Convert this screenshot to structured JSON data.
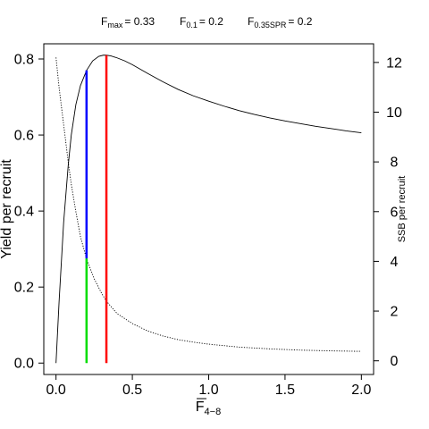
{
  "chart_data": {
    "type": "line",
    "title_parts": [
      {
        "base": "F",
        "sub": "max",
        "value": "= 0.33"
      },
      {
        "base": "F",
        "sub": "0.1",
        "value": "= 0.2"
      },
      {
        "base": "F",
        "sub": "0.35SPR",
        "value": "= 0.2"
      }
    ],
    "xlabel": {
      "base": "F",
      "sub": "4−8"
    },
    "ylabel": "Yield per recruit",
    "y2label": "SSB per recruit",
    "xlim": [
      0,
      2
    ],
    "ylim": [
      0,
      0.8
    ],
    "y2lim": [
      0,
      12
    ],
    "xticks": [
      0,
      0.5,
      1,
      1.5,
      2
    ],
    "xtick_labels": [
      "0.0",
      "0.5",
      "1.0",
      "1.5",
      "2.0"
    ],
    "yticks": [
      0,
      0.2,
      0.4,
      0.6,
      0.8
    ],
    "ytick_labels": [
      "0.0",
      "0.2",
      "0.4",
      "0.6",
      "0.8"
    ],
    "y2ticks": [
      0,
      2,
      4,
      6,
      8,
      10,
      12
    ],
    "y2tick_labels": [
      "0",
      "2",
      "4",
      "6",
      "8",
      "10",
      "12"
    ],
    "grid": false,
    "series": [
      {
        "style": "solid",
        "axis": "left",
        "color": "#000000",
        "x": [
          0,
          0.02,
          0.05,
          0.08,
          0.1,
          0.13,
          0.16,
          0.2,
          0.24,
          0.28,
          0.31,
          0.33,
          0.36,
          0.4,
          0.45,
          0.5,
          0.6,
          0.7,
          0.8,
          0.9,
          1.0,
          1.1,
          1.2,
          1.3,
          1.4,
          1.5,
          1.6,
          1.7,
          1.8,
          1.9,
          2.0
        ],
        "y": [
          0,
          0.16,
          0.37,
          0.52,
          0.6,
          0.68,
          0.73,
          0.77,
          0.795,
          0.807,
          0.81,
          0.81,
          0.808,
          0.803,
          0.795,
          0.785,
          0.762,
          0.74,
          0.72,
          0.703,
          0.689,
          0.676,
          0.664,
          0.654,
          0.645,
          0.637,
          0.63,
          0.623,
          0.617,
          0.611,
          0.606
        ]
      },
      {
        "style": "dotted",
        "axis": "right",
        "color": "#000000",
        "x": [
          0,
          0.02,
          0.05,
          0.08,
          0.1,
          0.13,
          0.16,
          0.2,
          0.25,
          0.3,
          0.33,
          0.4,
          0.5,
          0.6,
          0.7,
          0.8,
          0.9,
          1.0,
          1.2,
          1.4,
          1.6,
          1.8,
          2.0
        ],
        "y": [
          12.2,
          11.0,
          9.5,
          8.0,
          7.1,
          6.0,
          5.0,
          4.1,
          3.3,
          2.7,
          2.4,
          1.9,
          1.5,
          1.2,
          1.0,
          0.85,
          0.75,
          0.67,
          0.55,
          0.48,
          0.43,
          0.4,
          0.38
        ]
      }
    ],
    "reference_lines": [
      {
        "x": 0.33,
        "y0": 0,
        "y1": 0.81,
        "color": "#ff0000"
      },
      {
        "x": 0.2,
        "y0": 0.275,
        "y1": 0.77,
        "color": "#0000ff"
      },
      {
        "x": 0.2,
        "y0": 0,
        "y1": 0.275,
        "color": "#00dd00"
      }
    ]
  }
}
